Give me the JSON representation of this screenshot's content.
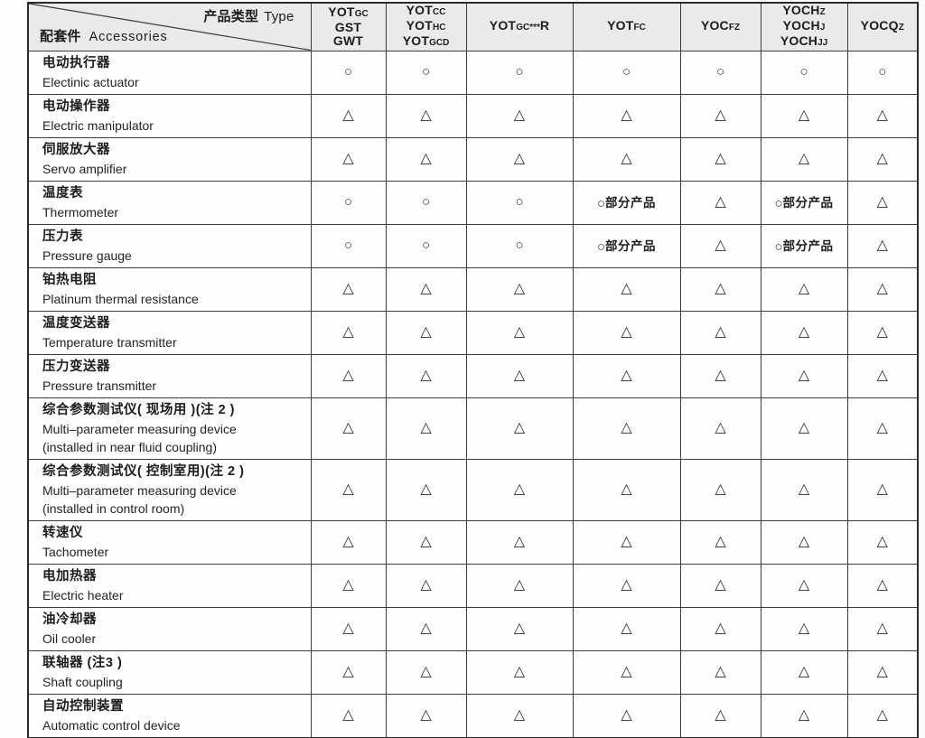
{
  "table": {
    "corner": {
      "type_zh": "产品类型",
      "type_en": "Type",
      "accessories_zh": "配套件",
      "accessories_en": "Accessories"
    },
    "symbols": {
      "circle": "○",
      "triangle": "△",
      "partial_label": "部分产品"
    },
    "product_columns": [
      {
        "id": "yotgc-gst-gwt",
        "lines": [
          "YOT~GC~",
          "GST",
          "GWT"
        ]
      },
      {
        "id": "yotcc-yothc-yotgcd",
        "lines": [
          "YOT~CC~",
          "YOT~HC~",
          "YOT~GCD~"
        ]
      },
      {
        "id": "yotgc-r",
        "lines": [
          "YOT~GC***~R"
        ]
      },
      {
        "id": "yotfc",
        "lines": [
          "YOT~FC~"
        ]
      },
      {
        "id": "yocfz",
        "lines": [
          "YOC~FZ~"
        ]
      },
      {
        "id": "yochz-yochj-yochjj",
        "lines": [
          "YOCH~Z~",
          "YOCH~J~",
          "YOCH~JJ~"
        ]
      },
      {
        "id": "yocqz",
        "lines": [
          "YOCQ~Z~"
        ]
      }
    ],
    "rows": [
      {
        "zh": "电动执行器",
        "en": [
          "Electinic actuator"
        ],
        "cells": [
          "c",
          "c",
          "c",
          "c",
          "c",
          "c",
          "c"
        ]
      },
      {
        "zh": "电动操作器",
        "en": [
          "Electric manipulator"
        ],
        "cells": [
          "t",
          "t",
          "t",
          "t",
          "t",
          "t",
          "t"
        ]
      },
      {
        "zh": "伺服放大器",
        "en": [
          "Servo amplifier"
        ],
        "cells": [
          "t",
          "t",
          "t",
          "t",
          "t",
          "t",
          "t"
        ]
      },
      {
        "zh": "温度表",
        "en": [
          "Thermometer"
        ],
        "cells": [
          "c",
          "c",
          "c",
          "cp",
          "t",
          "cp",
          "t"
        ]
      },
      {
        "zh": "压力表",
        "en": [
          "Pressure gauge"
        ],
        "cells": [
          "c",
          "c",
          "c",
          "cp",
          "t",
          "cp",
          "t"
        ]
      },
      {
        "zh": "铂热电阻",
        "en": [
          "Platinum thermal resistance"
        ],
        "cells": [
          "t",
          "t",
          "t",
          "t",
          "t",
          "t",
          "t"
        ]
      },
      {
        "zh": "温度变送器",
        "en": [
          "Temperature transmitter"
        ],
        "cells": [
          "t",
          "t",
          "t",
          "t",
          "t",
          "t",
          "t"
        ]
      },
      {
        "zh": "压力变送器",
        "en": [
          "Pressure transmitter"
        ],
        "cells": [
          "t",
          "t",
          "t",
          "t",
          "t",
          "t",
          "t"
        ]
      },
      {
        "zh": "综合参数测试仪( 现场用 )(注 2 )",
        "en": [
          "Multi–parameter measuring device",
          "(installed in near fluid coupling)"
        ],
        "cells": [
          "t",
          "t",
          "t",
          "t",
          "t",
          "t",
          "t"
        ]
      },
      {
        "zh": "综合参数测试仪( 控制室用)(注 2 )",
        "en": [
          "Multi–parameter measuring device",
          "(installed in control room)"
        ],
        "cells": [
          "t",
          "t",
          "t",
          "t",
          "t",
          "t",
          "t"
        ]
      },
      {
        "zh": "转速仪",
        "en": [
          "Tachometer"
        ],
        "cells": [
          "t",
          "t",
          "t",
          "t",
          "t",
          "t",
          "t"
        ]
      },
      {
        "zh": "电加热器",
        "en": [
          "Electric heater"
        ],
        "cells": [
          "t",
          "t",
          "t",
          "t",
          "t",
          "t",
          "t"
        ]
      },
      {
        "zh": "油冷却器",
        "en": [
          "Oil cooler"
        ],
        "cells": [
          "t",
          "t",
          "t",
          "t",
          "t",
          "t",
          "t"
        ]
      },
      {
        "zh": "联轴器 (注3 )",
        "en": [
          "Shaft coupling"
        ],
        "cells": [
          "t",
          "t",
          "t",
          "t",
          "t",
          "t",
          "t"
        ]
      },
      {
        "zh": "自动控制装置",
        "en": [
          "Automatic control device"
        ],
        "cells": [
          "t",
          "t",
          "t",
          "t",
          "t",
          "t",
          "t"
        ]
      }
    ]
  }
}
